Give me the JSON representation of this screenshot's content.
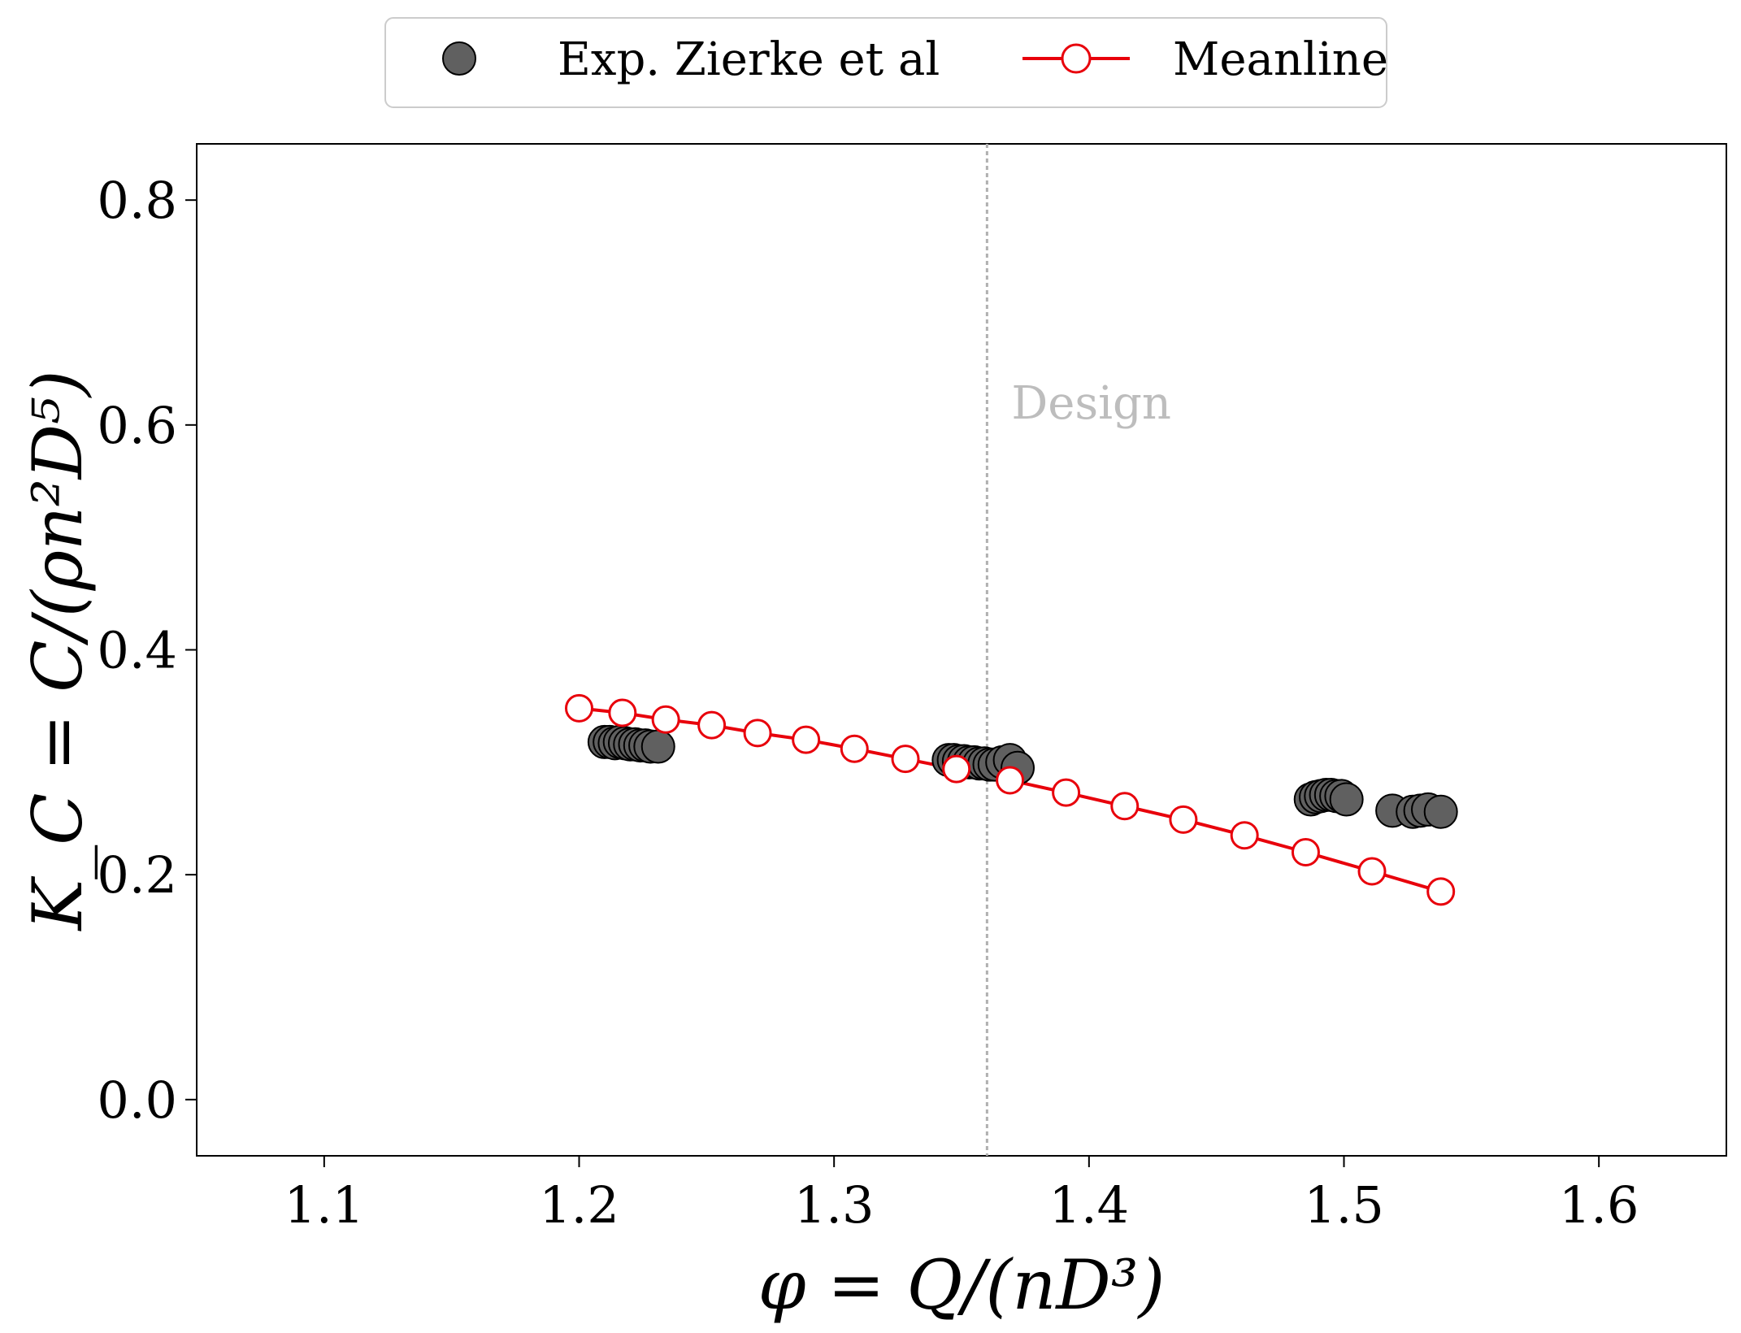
{
  "chart_data": {
    "type": "scatter",
    "xlabel": "φ = Q/(nD³)",
    "ylabel": "K_C = C/(ρn²D⁵)",
    "xlim": [
      1.05,
      1.65
    ],
    "ylim": [
      -0.05,
      0.85
    ],
    "xticks": [
      1.1,
      1.2,
      1.3,
      1.4,
      1.5,
      1.6
    ],
    "yticks": [
      0.0,
      0.2,
      0.4,
      0.6,
      0.8
    ],
    "xtick_labels": [
      "1.1",
      "1.2",
      "1.3",
      "1.4",
      "1.5",
      "1.6"
    ],
    "ytick_labels": [
      "0.0",
      "0.2",
      "0.4",
      "0.6",
      "0.8"
    ],
    "grid": false,
    "legend_position": "top-center-outside",
    "design_line": {
      "x": 1.36,
      "label": "Design",
      "color": "#b0b0b0"
    },
    "series": [
      {
        "name": "Exp. Zierke et al",
        "kind": "scatter",
        "color": "#606060",
        "x": [
          1.21,
          1.212,
          1.214,
          1.216,
          1.218,
          1.22,
          1.222,
          1.224,
          1.226,
          1.228,
          1.231,
          1.345,
          1.347,
          1.349,
          1.351,
          1.353,
          1.355,
          1.357,
          1.359,
          1.361,
          1.363,
          1.366,
          1.369,
          1.372,
          1.487,
          1.489,
          1.491,
          1.493,
          1.495,
          1.497,
          1.499,
          1.501,
          1.519,
          1.527,
          1.53,
          1.533,
          1.538
        ],
        "y": [
          0.318,
          0.318,
          0.317,
          0.318,
          0.317,
          0.316,
          0.316,
          0.315,
          0.315,
          0.314,
          0.314,
          0.302,
          0.302,
          0.301,
          0.301,
          0.3,
          0.3,
          0.299,
          0.299,
          0.298,
          0.298,
          0.3,
          0.302,
          0.295,
          0.267,
          0.269,
          0.27,
          0.271,
          0.271,
          0.27,
          0.27,
          0.267,
          0.257,
          0.256,
          0.257,
          0.258,
          0.256
        ]
      },
      {
        "name": "Meanline",
        "kind": "line-markers",
        "color": "#e8000b",
        "x": [
          1.2,
          1.217,
          1.234,
          1.252,
          1.27,
          1.289,
          1.308,
          1.328,
          1.348,
          1.369,
          1.391,
          1.414,
          1.437,
          1.461,
          1.485,
          1.511,
          1.538
        ],
        "y": [
          0.348,
          0.344,
          0.338,
          0.333,
          0.326,
          0.32,
          0.312,
          0.303,
          0.294,
          0.284,
          0.273,
          0.261,
          0.249,
          0.235,
          0.22,
          0.203,
          0.185
        ]
      }
    ]
  }
}
